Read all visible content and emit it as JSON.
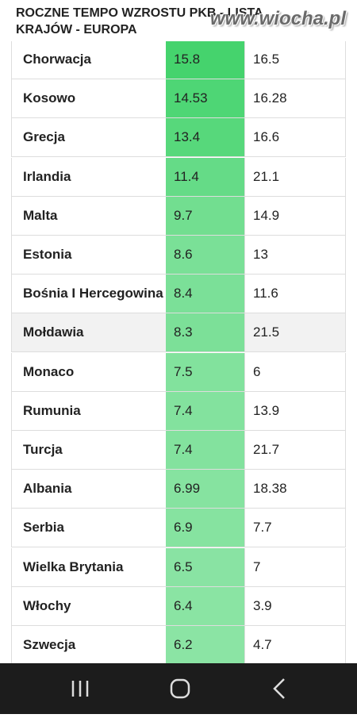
{
  "header": {
    "title": "ROCZNE TEMPO WZROSTU PKB - LISTA KRAJÓW - EUROPA",
    "watermark": "www.wiocha.pl"
  },
  "table": {
    "rows": [
      [
        "Chorwacja",
        15.8,
        16.5
      ],
      [
        "Kosowo",
        14.53,
        16.28
      ],
      [
        "Grecja",
        13.4,
        16.6
      ],
      [
        "Irlandia",
        11.4,
        21.1
      ],
      [
        "Malta",
        9.7,
        14.9
      ],
      [
        "Estonia",
        8.6,
        13
      ],
      [
        "Bośnia I Hercegowina",
        8.4,
        11.6
      ],
      [
        "Mołdawia",
        8.3,
        21.5
      ],
      [
        "Monaco",
        7.5,
        6
      ],
      [
        "Rumunia",
        7.4,
        13.9
      ],
      [
        "Turcja",
        7.4,
        21.7
      ],
      [
        "Albania",
        6.99,
        18.38
      ],
      [
        "Serbia",
        6.9,
        7.7
      ],
      [
        "Wielka Brytania",
        6.5,
        7
      ],
      [
        "Włochy",
        6.4,
        3.9
      ],
      [
        "Szwecja",
        6.2,
        4.7
      ]
    ]
  }
}
